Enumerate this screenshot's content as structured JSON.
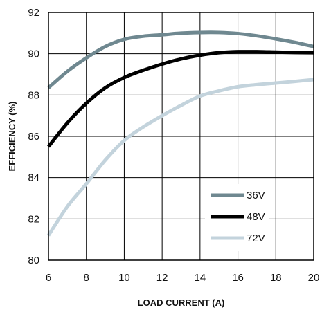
{
  "chart_data": {
    "type": "line",
    "xlabel": "LOAD CURRENT (A)",
    "ylabel": "EFFICIENCY (%)",
    "xlim": [
      6,
      20
    ],
    "ylim": [
      80,
      92
    ],
    "xticks": [
      6,
      8,
      10,
      12,
      14,
      16,
      18,
      20
    ],
    "yticks": [
      80,
      82,
      84,
      86,
      88,
      90,
      92
    ],
    "grid": true,
    "legend_position": "bottom-right",
    "series": [
      {
        "name": "36V",
        "color": "#6f8890",
        "x": [
          6,
          7,
          8,
          9,
          10,
          11,
          12,
          13,
          14,
          15,
          16,
          17,
          18,
          19,
          20
        ],
        "y": [
          88.35,
          89.15,
          89.8,
          90.35,
          90.7,
          90.85,
          90.92,
          91.0,
          91.03,
          91.03,
          90.98,
          90.87,
          90.72,
          90.55,
          90.35
        ]
      },
      {
        "name": "48V",
        "color": "#000000",
        "x": [
          6,
          7,
          8,
          9,
          10,
          11,
          12,
          13,
          14,
          15,
          16,
          17,
          18,
          19,
          20
        ],
        "y": [
          85.5,
          86.65,
          87.6,
          88.35,
          88.85,
          89.2,
          89.5,
          89.75,
          89.93,
          90.05,
          90.1,
          90.1,
          90.08,
          90.06,
          90.05
        ]
      },
      {
        "name": "72V",
        "color": "#c3d3dc",
        "x": [
          6,
          7,
          8,
          9,
          10,
          11,
          12,
          13,
          14,
          15,
          16,
          17,
          18,
          19,
          20
        ],
        "y": [
          81.2,
          82.6,
          83.7,
          84.85,
          85.8,
          86.45,
          87.0,
          87.5,
          87.95,
          88.2,
          88.4,
          88.5,
          88.58,
          88.66,
          88.75
        ]
      }
    ]
  }
}
